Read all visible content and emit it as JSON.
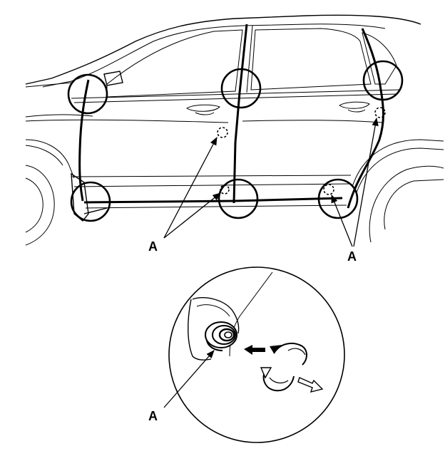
{
  "labels": {
    "left_a": "A",
    "right_a": "A",
    "detail_a": "A"
  },
  "colors": {
    "line": "#000000",
    "background": "#ffffff"
  }
}
